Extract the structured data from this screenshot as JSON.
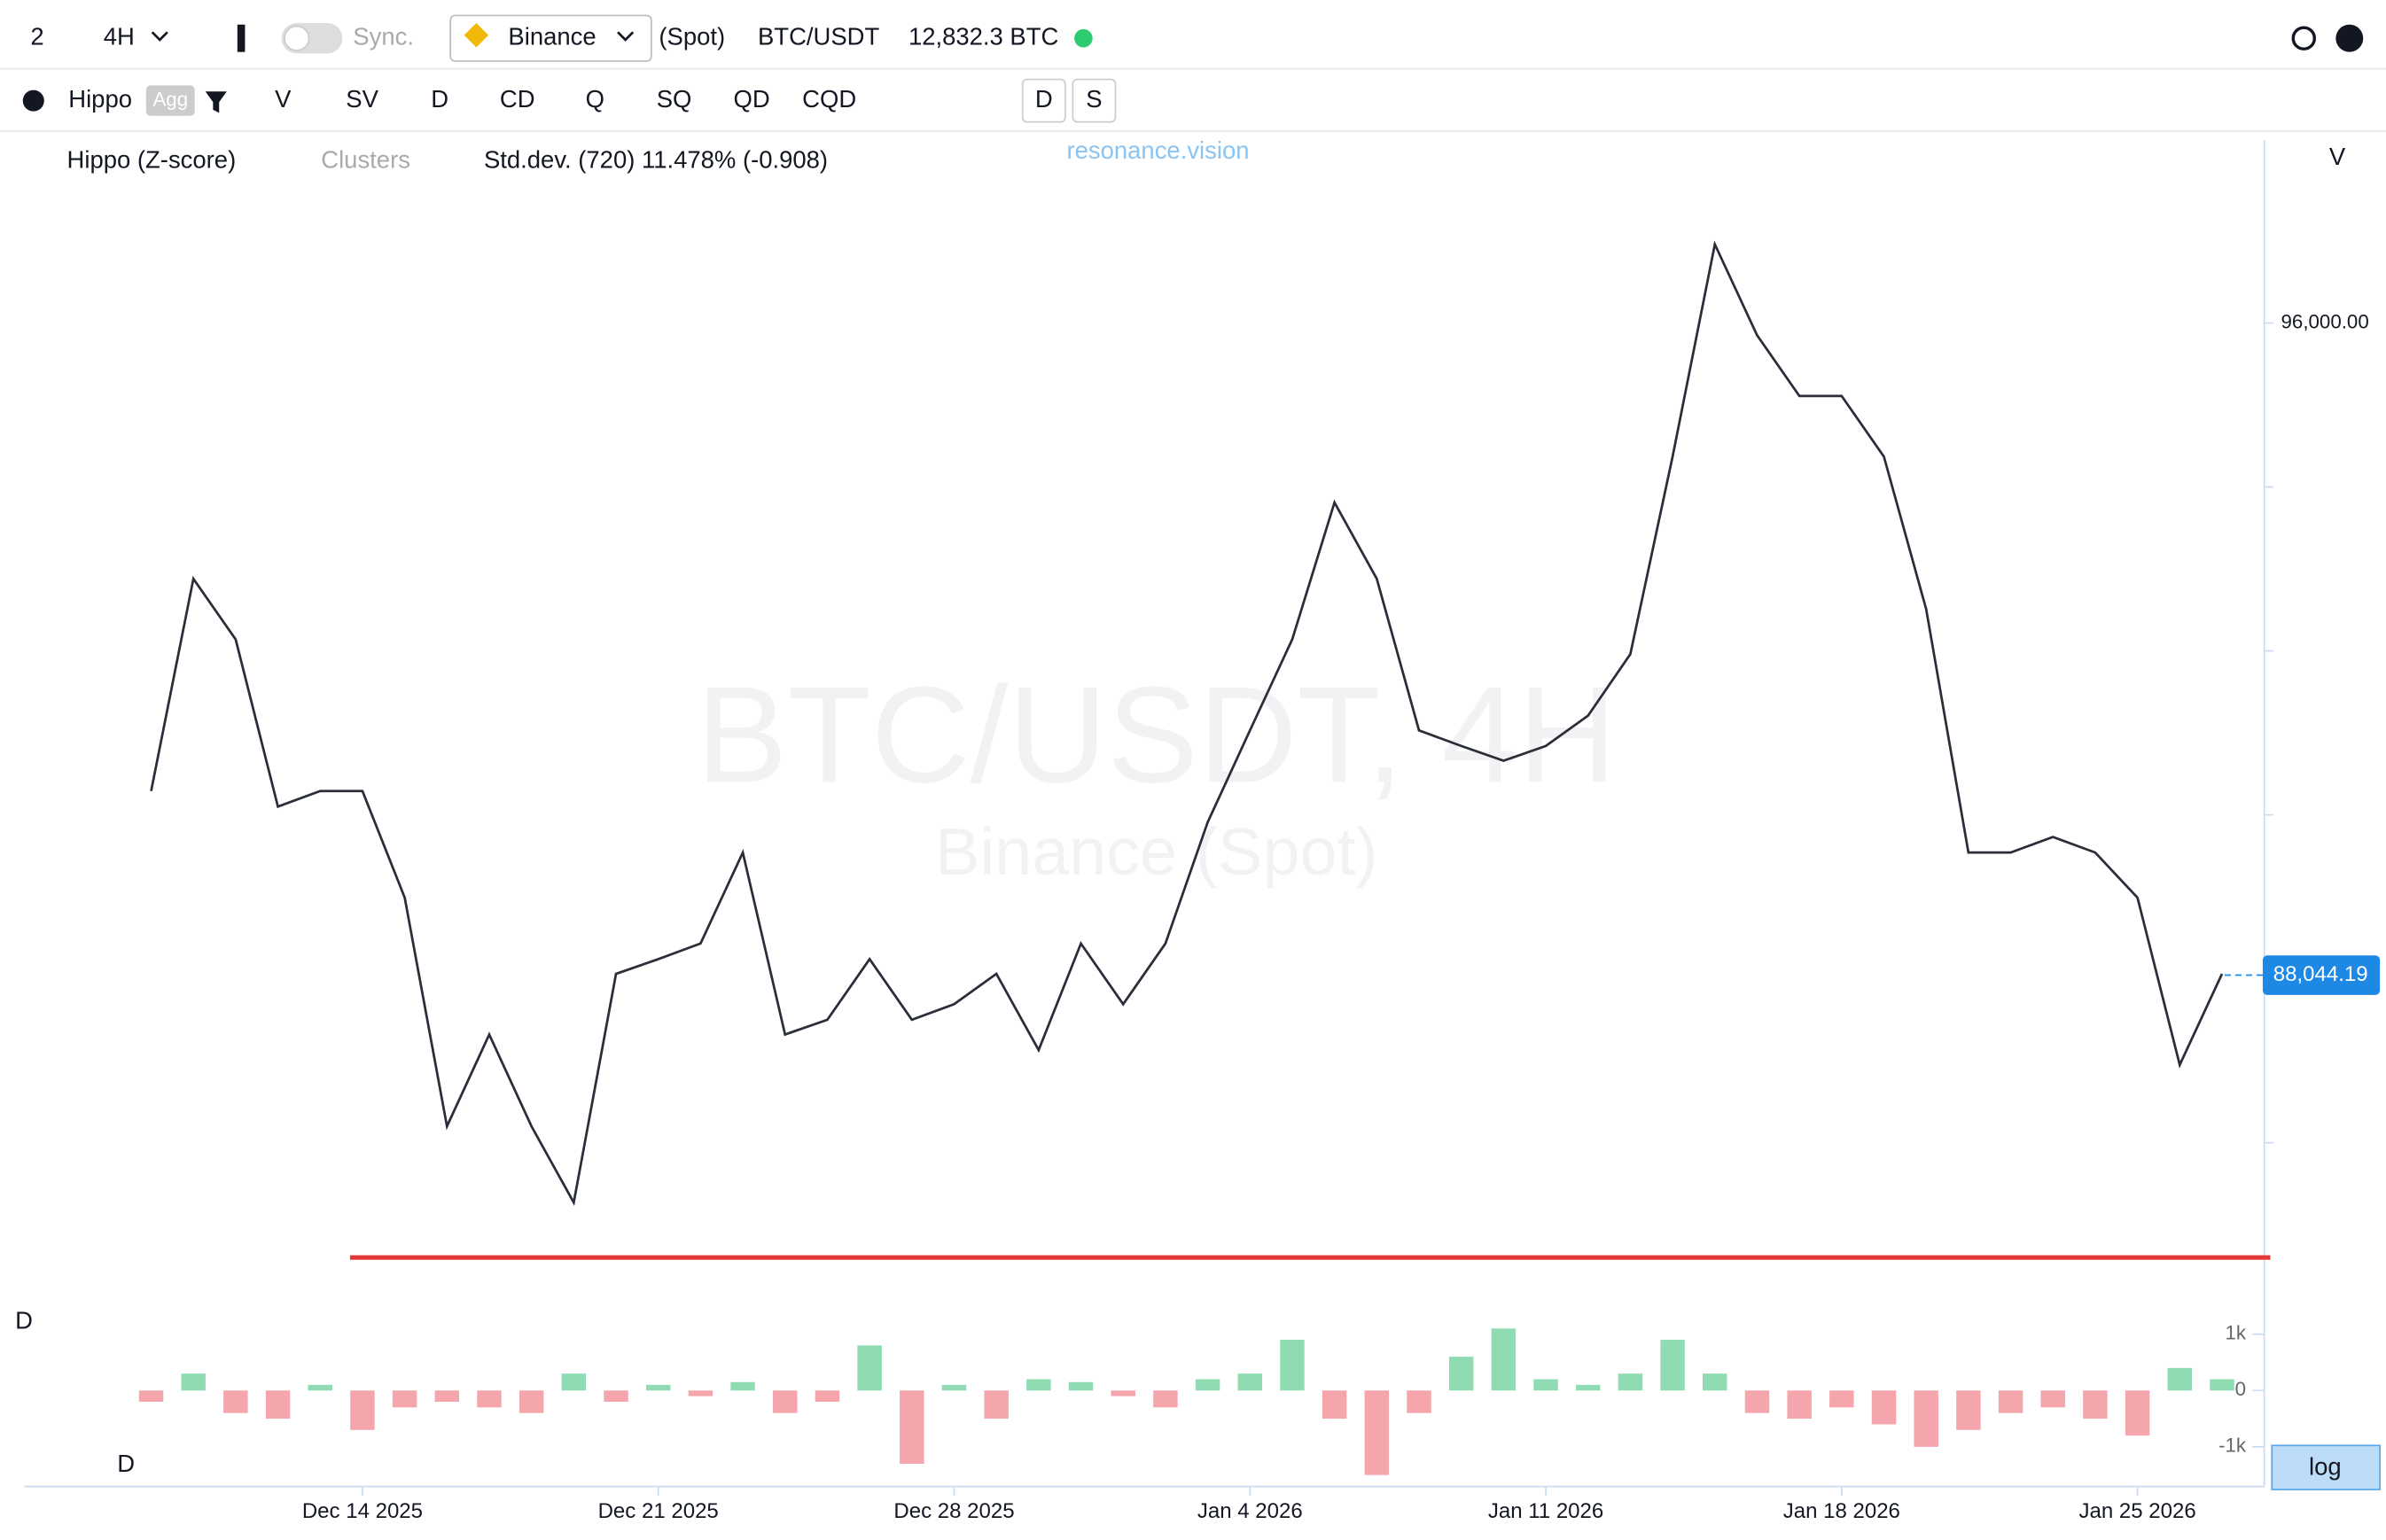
{
  "toolbar": {
    "layout": "2",
    "interval": "4H",
    "sync": "Sync.",
    "exchange": "Binance",
    "market": "(Spot)",
    "symbol": "BTC/USDT",
    "volume": "12,832.3 BTC"
  },
  "indicators": {
    "name": "Hippo",
    "agg": "Agg",
    "buttons": [
      "V",
      "SV",
      "D",
      "CD",
      "Q",
      "SQ",
      "QD",
      "CQD"
    ],
    "toggles": [
      "D",
      "S"
    ]
  },
  "legend": {
    "items": [
      "Hippo (Z-score)",
      "Clusters",
      "Std.dev. (720) 11.478% (-0.908)"
    ],
    "brand": "resonance.vision"
  },
  "price_axis_label": "V",
  "delta_labels": [
    "D",
    "D"
  ],
  "log": "log",
  "watermark": {
    "title": "BTC/USDT, 4H",
    "subtitle": "Binance (Spot)"
  },
  "chart_data": [
    {
      "type": "line",
      "x": [
        "2025-12-09",
        "2025-12-10",
        "2025-12-11",
        "2025-12-12",
        "2025-12-13",
        "2025-12-14",
        "2025-12-15",
        "2025-12-16",
        "2025-12-17",
        "2025-12-18",
        "2025-12-19",
        "2025-12-20",
        "2025-12-21",
        "2025-12-22",
        "2025-12-23",
        "2025-12-24",
        "2025-12-25",
        "2025-12-26",
        "2025-12-27",
        "2025-12-28",
        "2025-12-29",
        "2025-12-30",
        "2025-12-31",
        "2026-01-01",
        "2026-01-02",
        "2026-01-03",
        "2026-01-04",
        "2026-01-05",
        "2026-01-06",
        "2026-01-07",
        "2026-01-08",
        "2026-01-09",
        "2026-01-10",
        "2026-01-11",
        "2026-01-12",
        "2026-01-13",
        "2026-01-14",
        "2026-01-15",
        "2026-01-16",
        "2026-01-17",
        "2026-01-18",
        "2026-01-19",
        "2026-01-20",
        "2026-01-21",
        "2026-01-22",
        "2026-01-23",
        "2026-01-24",
        "2026-01-25",
        "2026-01-26",
        "2026-01-27"
      ],
      "series": [
        {
          "name": "BTC/USDT",
          "color": "#2a2e39",
          "values": [
            90290,
            92880,
            92140,
            90100,
            90290,
            90290,
            88990,
            86200,
            87320,
            86200,
            85270,
            88060,
            88240,
            88430,
            89540,
            87320,
            87500,
            88240,
            87500,
            87690,
            88060,
            87130,
            88430,
            87690,
            88430,
            89910,
            91030,
            92140,
            93810,
            92880,
            91030,
            90840,
            90660,
            90840,
            91210,
            91960,
            94370,
            96960,
            95850,
            95110,
            95110,
            94370,
            92510,
            89540,
            89540,
            89730,
            89540,
            88990,
            86950,
            88060
          ]
        }
      ],
      "xlim": [
        "2025-12-06",
        "2026-01-28"
      ],
      "xticks": [
        {
          "value": "2025-12-14",
          "label": "Dec 14 2025"
        },
        {
          "value": "2025-12-21",
          "label": "Dec 21 2025"
        },
        {
          "value": "2025-12-28",
          "label": "Dec 28 2025"
        },
        {
          "value": "2026-01-04",
          "label": "Jan 4 2026"
        },
        {
          "value": "2026-01-11",
          "label": "Jan 11 2026"
        },
        {
          "value": "2026-01-18",
          "label": "Jan 18 2026"
        },
        {
          "value": "2026-01-25",
          "label": "Jan 25 2026"
        }
      ],
      "ylim": [
        84070,
        98230
      ],
      "yticks": [
        {
          "value": 96000,
          "label": "96,000.00"
        }
      ],
      "yticks_minor": [
        94000,
        92000,
        90000,
        88000,
        86000
      ],
      "last_price": {
        "value": 88044.19,
        "label": "88,044.19",
        "color": "#1e88e5"
      },
      "level_line": {
        "value": 84600,
        "color": "#e53935"
      }
    },
    {
      "type": "bar",
      "x": [
        "2025-12-09",
        "2025-12-10",
        "2025-12-11",
        "2025-12-12",
        "2025-12-13",
        "2025-12-14",
        "2025-12-15",
        "2025-12-16",
        "2025-12-17",
        "2025-12-18",
        "2025-12-19",
        "2025-12-20",
        "2025-12-21",
        "2025-12-22",
        "2025-12-23",
        "2025-12-24",
        "2025-12-25",
        "2025-12-26",
        "2025-12-27",
        "2025-12-28",
        "2025-12-29",
        "2025-12-30",
        "2025-12-31",
        "2026-01-01",
        "2026-01-02",
        "2026-01-03",
        "2026-01-04",
        "2026-01-05",
        "2026-01-06",
        "2026-01-07",
        "2026-01-08",
        "2026-01-09",
        "2026-01-10",
        "2026-01-11",
        "2026-01-12",
        "2026-01-13",
        "2026-01-14",
        "2026-01-15",
        "2026-01-16",
        "2026-01-17",
        "2026-01-18",
        "2026-01-19",
        "2026-01-20",
        "2026-01-21",
        "2026-01-22",
        "2026-01-23",
        "2026-01-24",
        "2026-01-25",
        "2026-01-26",
        "2026-01-27"
      ],
      "values": [
        -200,
        300,
        -400,
        -500,
        100,
        -700,
        -300,
        -200,
        -300,
        -400,
        300,
        -200,
        100,
        -100,
        150,
        -400,
        -200,
        800,
        -1300,
        100,
        -500,
        200,
        150,
        -100,
        -300,
        200,
        300,
        900,
        -500,
        -1500,
        -400,
        600,
        1100,
        200,
        100,
        300,
        900,
        300,
        -400,
        -500,
        -300,
        -600,
        -1000,
        -700,
        -400,
        -300,
        -500,
        -800,
        400,
        200
      ],
      "colors": {
        "positive": "#8fdcb2",
        "negative": "#f5a6ad"
      },
      "ylim": [
        -1650,
        1320
      ],
      "yticks": [
        {
          "value": 1000,
          "label": "1k"
        },
        0,
        {
          "value": -1000,
          "label": "-1k"
        }
      ]
    }
  ]
}
